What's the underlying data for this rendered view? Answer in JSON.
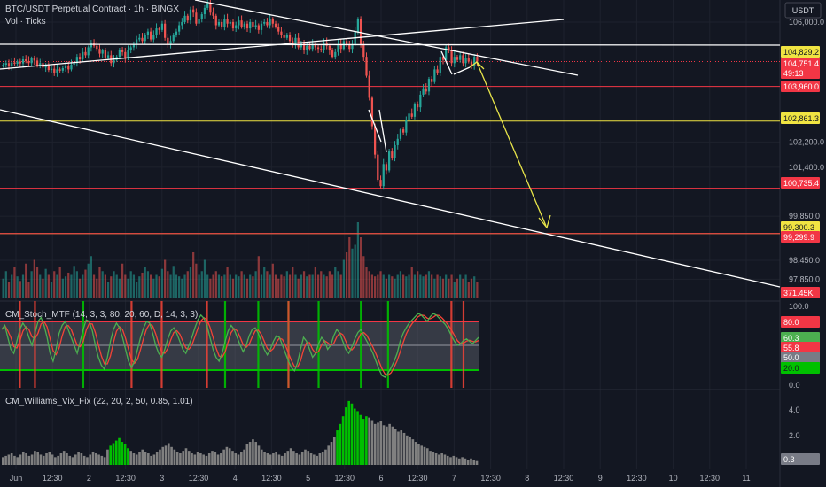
{
  "header": {
    "symbol_title": "BTC/USDT Perpetual Contract · 1h · BINGX",
    "volume_title": "Vol · Ticks",
    "currency_button": "USDT"
  },
  "colors": {
    "background": "#131722",
    "up": "#26a69a",
    "down": "#ef5350",
    "trendline": "#ffffff",
    "forecast_arrow": "#e8e54a",
    "support_red": "#f23645",
    "support_yellow": "#f0e442",
    "stoch_line": "#4caf50",
    "stoch_signal": "#f44336",
    "vix_green": "#00c000",
    "vix_gray": "#808080"
  },
  "chart_data": [
    {
      "type": "candlestick",
      "panel": "price",
      "title": "BTC/USDT Perpetual Contract · 1h · BINGX",
      "y_axis_ticks": [
        106000,
        102200,
        101400,
        99850,
        98450,
        97850
      ],
      "y_axis_labels": [
        "106,000.0",
        "102,200.0",
        "101,400.0",
        "99,850.0",
        "98,450.0",
        "97,850.0"
      ],
      "ylim": [
        97300,
        106700
      ],
      "x_axis_labels": [
        "Jun",
        "12:30",
        "2",
        "12:30",
        "3",
        "12:30",
        "4",
        "12:30",
        "5",
        "12:30",
        "6",
        "12:30",
        "7",
        "12:30",
        "8",
        "12:30",
        "9",
        "12:30",
        "10",
        "12:30",
        "11"
      ],
      "horizontal_levels": [
        {
          "label": "104,829.2",
          "value": 104829.2,
          "color": "#f0e442",
          "kind": "price-tag"
        },
        {
          "label": "104,751.4",
          "value": 104751.4,
          "color": "#f23645",
          "kind": "last-price"
        },
        {
          "label": "49:13",
          "kind": "countdown"
        },
        {
          "label": "103,960.0",
          "value": 103960.0,
          "color": "#f23645"
        },
        {
          "label": "102,861.3",
          "value": 102861.3,
          "color": "#f0e442"
        },
        {
          "label": "100,735.4",
          "value": 100735.4,
          "color": "#f23645"
        },
        {
          "label": "99,300.3",
          "value": 99300.3,
          "color": "#f0e442"
        },
        {
          "label": "99,299.9",
          "value": 99299.9,
          "color": "#f23645"
        }
      ],
      "white_level": 106070,
      "volume_last_label": "371.45K",
      "close_series": [
        104650,
        104700,
        104600,
        104720,
        104680,
        104750,
        104690,
        104820,
        104760,
        104700,
        104850,
        104780,
        104620,
        104700,
        104560,
        104640,
        104480,
        104520,
        104400,
        104500,
        104460,
        104540,
        104620,
        104500,
        104650,
        104700,
        104900,
        104820,
        105050,
        104950,
        105200,
        105350,
        105250,
        105150,
        105000,
        105100,
        104880,
        104950,
        104700,
        104800,
        104900,
        105100,
        105050,
        104850,
        105100,
        105200,
        105300,
        105450,
        105500,
        105400,
        105600,
        105700,
        105450,
        105600,
        105800,
        105750,
        105950,
        105500,
        105300,
        105400,
        105600,
        105700,
        105900,
        106000,
        106200,
        106050,
        106400,
        106300,
        105950,
        106100,
        106250,
        106450,
        106600,
        106300,
        106200,
        105900,
        106000,
        105850,
        106100,
        105950,
        106000,
        105800,
        105900,
        106050,
        105850,
        105950,
        105800,
        106000,
        105850,
        105900,
        105750,
        105950,
        106000,
        105900,
        106100,
        105950,
        105850,
        105700,
        105600,
        105500,
        105600,
        105400,
        105300,
        105500,
        105200,
        105350,
        105100,
        105250,
        105150,
        105300,
        105200,
        105150,
        105100,
        105350,
        105250,
        105100,
        104900,
        105050,
        105300,
        105150,
        105400,
        105300,
        105150,
        105300,
        105700,
        106100,
        105300,
        104900,
        104300,
        103600,
        102700,
        101800,
        101000,
        100800,
        101500,
        101300,
        101900,
        101700,
        102100,
        102300,
        102600,
        102500,
        102900,
        103100,
        103000,
        103400,
        103300,
        103700,
        103900,
        103800,
        104200,
        104100,
        104500,
        104400,
        104900,
        104800,
        105200,
        105100,
        104700,
        104900,
        104800,
        104950,
        104700,
        104850,
        104750,
        104600,
        104900,
        104751
      ]
    },
    {
      "type": "bar",
      "panel": "volume",
      "title": "Vol · Ticks",
      "values": [
        0.25,
        0.35,
        0.2,
        0.3,
        0.4,
        0.28,
        0.22,
        0.3,
        0.45,
        0.2,
        0.35,
        0.5,
        0.4,
        0.3,
        0.25,
        0.38,
        0.3,
        0.2,
        0.35,
        0.3,
        0.4,
        0.25,
        0.28,
        0.33,
        0.3,
        0.42,
        0.35,
        0.25,
        0.3,
        0.37,
        0.45,
        0.55,
        0.3,
        0.25,
        0.4,
        0.35,
        0.3,
        0.2,
        0.28,
        0.35,
        0.3,
        0.25,
        0.45,
        0.3,
        0.25,
        0.35,
        0.3,
        0.2,
        0.28,
        0.33,
        0.4,
        0.35,
        0.3,
        0.25,
        0.3,
        0.28,
        0.38,
        0.5,
        0.35,
        0.3,
        0.42,
        0.3,
        0.28,
        0.25,
        0.3,
        0.35,
        0.4,
        0.6,
        0.45,
        0.3,
        0.35,
        0.5,
        0.3,
        0.25,
        0.3,
        0.35,
        0.3,
        0.28,
        0.3,
        0.4,
        0.3,
        0.25,
        0.3,
        0.28,
        0.35,
        0.3,
        0.25,
        0.3,
        0.28,
        0.35,
        0.55,
        0.3,
        0.4,
        0.35,
        0.3,
        0.45,
        0.3,
        0.25,
        0.3,
        0.28,
        0.35,
        0.3,
        0.4,
        0.3,
        0.25,
        0.3,
        0.35,
        0.28,
        0.3,
        0.3,
        0.4,
        0.3,
        0.35,
        0.3,
        0.28,
        0.35,
        0.3,
        0.4,
        0.35,
        0.3,
        0.5,
        0.6,
        0.8,
        0.65,
        0.7,
        1.0,
        0.8,
        0.55,
        0.4,
        0.35,
        0.3,
        0.28,
        0.3,
        0.35,
        0.3,
        0.25,
        0.3,
        0.28,
        0.25,
        0.3,
        0.35,
        0.3,
        0.28,
        0.3,
        0.4,
        0.3,
        0.35,
        0.3,
        0.28,
        0.3,
        0.35,
        0.3,
        0.25,
        0.3,
        0.28,
        0.25,
        0.3,
        0.25,
        0.3,
        0.2,
        0.25,
        0.3,
        0.25,
        0.3,
        0.2,
        0.25,
        0.28,
        0.2,
        0.25
      ]
    },
    {
      "type": "line",
      "panel": "stochastic",
      "title": "CM_Stoch_MTF (14, 3, 3, 80, 20, 60, D, 14, 3, 3)",
      "y_axis_labels": [
        "100.0",
        "0.0"
      ],
      "ylim": [
        0,
        100
      ],
      "levels": [
        80,
        20
      ],
      "value_tags": [
        {
          "label": "80.0",
          "color": "#f23645"
        },
        {
          "label": "60.3",
          "color": "#4caf50"
        },
        {
          "label": "55.8",
          "color": "#f23645"
        },
        {
          "label": "50.0",
          "color": "#787b86"
        },
        {
          "label": "20.0",
          "color": "#00c000"
        }
      ],
      "k_series": [
        70,
        75,
        60,
        45,
        40,
        55,
        70,
        78,
        72,
        60,
        50,
        65,
        80,
        85,
        75,
        60,
        40,
        30,
        45,
        65,
        75,
        80,
        70,
        60,
        50,
        40,
        55,
        70,
        82,
        80,
        68,
        50,
        35,
        25,
        20,
        35,
        55,
        70,
        78,
        72,
        60,
        45,
        30,
        22,
        30,
        45,
        60,
        72,
        80,
        78,
        65,
        50,
        40,
        35,
        45,
        58,
        68,
        72,
        65,
        55,
        45,
        40,
        50,
        60,
        72,
        82,
        88,
        84,
        75,
        60,
        45,
        35,
        30,
        40,
        55,
        68,
        75,
        70,
        60,
        50,
        42,
        50,
        62,
        70,
        72,
        65,
        55,
        45,
        38,
        45,
        55,
        62,
        60,
        50,
        40,
        30,
        22,
        18,
        28,
        45,
        60,
        55,
        45,
        35,
        40,
        52,
        60,
        55,
        45,
        50,
        62,
        70,
        65,
        55,
        45,
        40,
        48,
        58,
        66,
        70,
        62,
        55,
        48,
        40,
        30,
        20,
        12,
        10,
        15,
        22,
        30,
        40,
        55,
        65,
        72,
        78,
        82,
        86,
        90,
        88,
        84,
        80,
        86,
        90,
        88,
        84,
        80,
        76,
        70,
        62,
        55,
        50,
        52,
        56,
        58,
        55,
        52,
        56,
        60
      ],
      "green_markers": [
        27,
        74,
        85,
        95,
        105,
        119,
        128
      ],
      "red_markers": [
        6,
        11,
        43,
        53,
        68,
        95,
        149,
        153
      ]
    },
    {
      "type": "bar",
      "panel": "williams_vix",
      "title": "CM_Williams_Vix_Fix (22, 20, 2, 50, 0.85, 1.01)",
      "y_axis_labels": [
        "4.0",
        "2.0",
        "0.3"
      ],
      "ylim": [
        0,
        5.2
      ],
      "last_value": "0.3",
      "values": [
        0.6,
        0.7,
        0.8,
        0.9,
        0.7,
        0.6,
        0.8,
        1.0,
        0.9,
        0.7,
        0.8,
        1.1,
        1.0,
        0.8,
        0.7,
        0.9,
        1.0,
        0.8,
        0.6,
        0.7,
        0.9,
        1.1,
        0.9,
        0.7,
        0.6,
        0.8,
        1.0,
        0.9,
        0.7,
        0.6,
        0.8,
        1.0,
        0.9,
        0.8,
        0.7,
        0.6,
        1.2,
        1.5,
        1.7,
        1.9,
        2.1,
        1.8,
        1.6,
        1.3,
        1.1,
        0.9,
        0.8,
        1.0,
        1.2,
        1.0,
        0.9,
        0.7,
        0.8,
        1.0,
        1.2,
        1.4,
        1.5,
        1.7,
        1.4,
        1.2,
        1.0,
        0.9,
        1.1,
        1.3,
        1.1,
        0.9,
        0.8,
        1.0,
        0.9,
        0.8,
        0.7,
        0.9,
        1.1,
        1.0,
        0.8,
        0.9,
        1.2,
        1.4,
        1.3,
        1.1,
        0.9,
        0.8,
        1.0,
        1.2,
        1.6,
        1.8,
        2.0,
        1.8,
        1.5,
        1.2,
        1.0,
        0.9,
        0.8,
        0.9,
        1.0,
        0.8,
        0.7,
        0.9,
        1.1,
        1.3,
        1.1,
        0.9,
        0.8,
        1.0,
        1.2,
        1.1,
        0.9,
        0.8,
        0.7,
        0.9,
        1.0,
        1.2,
        1.5,
        1.8,
        2.2,
        2.7,
        3.2,
        3.8,
        4.5,
        5.0,
        4.8,
        4.4,
        4.2,
        3.9,
        3.6,
        3.8,
        3.7,
        3.5,
        3.2,
        3.3,
        3.4,
        3.1,
        3.0,
        3.2,
        3.0,
        2.8,
        2.6,
        2.7,
        2.5,
        2.3,
        2.2,
        2.0,
        1.8,
        1.6,
        1.5,
        1.4,
        1.3,
        1.1,
        1.0,
        0.9,
        0.8,
        0.9,
        0.8,
        0.7,
        0.6,
        0.7,
        0.6,
        0.5,
        0.6,
        0.5,
        0.4,
        0.5,
        0.4,
        0.3
      ],
      "green_indices": [
        37,
        38,
        39,
        40,
        41,
        42,
        43,
        115,
        116,
        117,
        118,
        119,
        120,
        121,
        122,
        123,
        124,
        125
      ]
    }
  ]
}
